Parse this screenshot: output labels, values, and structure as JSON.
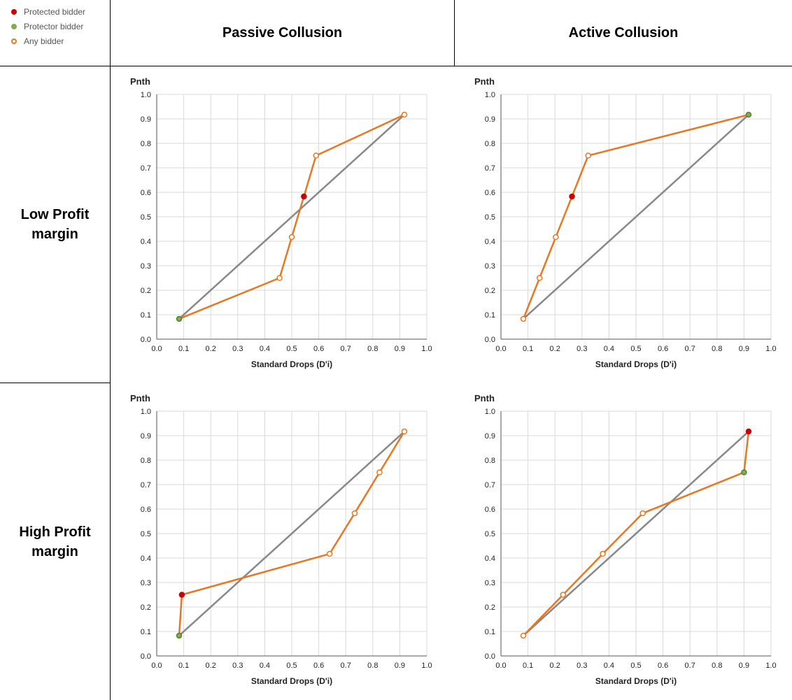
{
  "legend": [
    {
      "label": "Protected bidder",
      "color": "#cc0000",
      "style": "filled"
    },
    {
      "label": "Protector bidder",
      "color": "#7fae4e",
      "style": "filled"
    },
    {
      "label": "Any bidder",
      "color": "#e87722",
      "style": "hollow"
    }
  ],
  "columns": [
    "Passive Collusion",
    "Active Collusion"
  ],
  "rows": [
    "Low Profit\nmargin",
    "High Profit\nmargin"
  ],
  "colors": {
    "diagonal": "#888888",
    "line": "#e87722",
    "protected": "#cc0000",
    "protector": "#7fae4e"
  },
  "chart_data": [
    {
      "id": "low-passive",
      "type": "line",
      "ylabel": "Pnth",
      "xlabel": "Standard Drops (D'i)",
      "xlim": [
        0,
        1
      ],
      "ylim": [
        0,
        1
      ],
      "grid": true,
      "ticks": [
        "0.0",
        "0.1",
        "0.2",
        "0.3",
        "0.4",
        "0.5",
        "0.6",
        "0.7",
        "0.8",
        "0.9",
        "1.0"
      ],
      "series": [
        {
          "x": [
            0.083,
            0.917
          ],
          "y": [
            0.083,
            0.917
          ],
          "role": "diagonal"
        },
        {
          "x": [
            0.083,
            0.455,
            0.5,
            0.545,
            0.59,
            0.917
          ],
          "y": [
            0.083,
            0.25,
            0.417,
            0.583,
            0.75,
            0.917
          ],
          "role": "bidders",
          "markers": [
            "protector",
            "any",
            "any",
            "protected",
            "any",
            "any"
          ]
        }
      ]
    },
    {
      "id": "low-active",
      "type": "line",
      "ylabel": "Pnth",
      "xlabel": "Standard Drops (D'i)",
      "xlim": [
        0,
        1
      ],
      "ylim": [
        0,
        1
      ],
      "grid": true,
      "ticks": [
        "0.0",
        "0.1",
        "0.2",
        "0.3",
        "0.4",
        "0.5",
        "0.6",
        "0.7",
        "0.8",
        "0.9",
        "1.0"
      ],
      "series": [
        {
          "x": [
            0.083,
            0.917
          ],
          "y": [
            0.083,
            0.917
          ],
          "role": "diagonal"
        },
        {
          "x": [
            0.083,
            0.143,
            0.203,
            0.263,
            0.323,
            0.917
          ],
          "y": [
            0.083,
            0.25,
            0.417,
            0.583,
            0.75,
            0.917
          ],
          "role": "bidders",
          "markers": [
            "any",
            "any",
            "any",
            "protected",
            "any",
            "protector"
          ]
        }
      ]
    },
    {
      "id": "high-passive",
      "type": "line",
      "ylabel": "Pnth",
      "xlabel": "Standard Drops (D'i)",
      "xlim": [
        0,
        1
      ],
      "ylim": [
        0,
        1
      ],
      "grid": true,
      "ticks": [
        "0.0",
        "0.1",
        "0.2",
        "0.3",
        "0.4",
        "0.5",
        "0.6",
        "0.7",
        "0.8",
        "0.9",
        "1.0"
      ],
      "series": [
        {
          "x": [
            0.083,
            0.917
          ],
          "y": [
            0.083,
            0.917
          ],
          "role": "diagonal"
        },
        {
          "x": [
            0.083,
            0.093,
            0.64,
            0.733,
            0.825,
            0.917
          ],
          "y": [
            0.083,
            0.25,
            0.417,
            0.583,
            0.75,
            0.917
          ],
          "role": "bidders",
          "markers": [
            "protector",
            "protected",
            "any",
            "any",
            "any",
            "any"
          ]
        }
      ]
    },
    {
      "id": "high-active",
      "type": "line",
      "ylabel": "Pnth",
      "xlabel": "Standard Drops (D'i)",
      "xlim": [
        0,
        1
      ],
      "ylim": [
        0,
        1
      ],
      "grid": true,
      "ticks": [
        "0.0",
        "0.1",
        "0.2",
        "0.3",
        "0.4",
        "0.5",
        "0.6",
        "0.7",
        "0.8",
        "0.9",
        "1.0"
      ],
      "series": [
        {
          "x": [
            0.083,
            0.917
          ],
          "y": [
            0.083,
            0.917
          ],
          "role": "diagonal"
        },
        {
          "x": [
            0.083,
            0.23,
            0.377,
            0.525,
            0.9,
            0.917
          ],
          "y": [
            0.083,
            0.25,
            0.417,
            0.583,
            0.75,
            0.917
          ],
          "role": "bidders",
          "markers": [
            "any",
            "any",
            "any",
            "any",
            "protector",
            "protected"
          ]
        }
      ]
    }
  ]
}
